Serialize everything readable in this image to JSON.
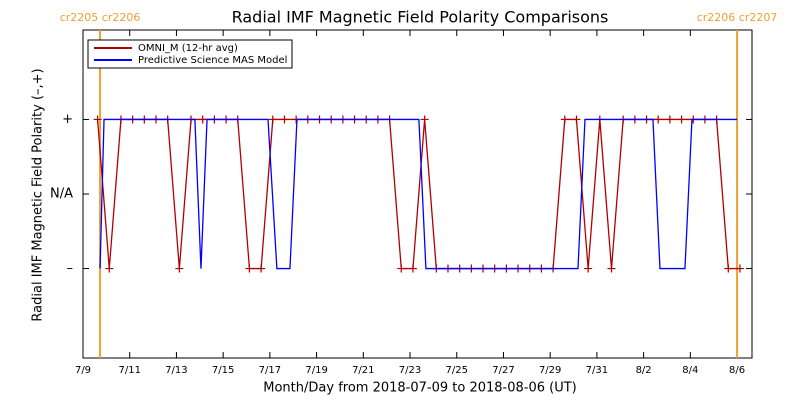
{
  "chart_data": {
    "type": "line",
    "title": "Radial IMF Magnetic Field Polarity Comparisons",
    "x_label": "Month/Day from 2018-07-09 to 2018-08-06 (UT)",
    "y_label": "Radial IMF Magnetic Field Polarity (–,+)",
    "xlim": [
      0,
      28.64
    ],
    "xticks": [
      {
        "value": 0,
        "label": "7/9"
      },
      {
        "value": 2,
        "label": "7/11"
      },
      {
        "value": 4,
        "label": "7/13"
      },
      {
        "value": 6,
        "label": "7/15"
      },
      {
        "value": 8,
        "label": "7/17"
      },
      {
        "value": 10,
        "label": "7/19"
      },
      {
        "value": 12,
        "label": "7/21"
      },
      {
        "value": 14,
        "label": "7/23"
      },
      {
        "value": 16,
        "label": "7/25"
      },
      {
        "value": 18,
        "label": "7/27"
      },
      {
        "value": 20,
        "label": "7/29"
      },
      {
        "value": 22,
        "label": "7/31"
      },
      {
        "value": 24,
        "label": "8/2"
      },
      {
        "value": 26,
        "label": "8/4"
      },
      {
        "value": 28,
        "label": "8/6"
      }
    ],
    "ylim": [
      -2.2,
      2.2
    ],
    "yticks": [
      {
        "value": 1,
        "label": "+"
      },
      {
        "value": 0,
        "label": "N/A"
      },
      {
        "value": -1,
        "label": "–"
      }
    ],
    "legend": "upper-left",
    "rotation_markers": [
      {
        "x": 0.73,
        "label": "cr2205 cr2206"
      },
      {
        "x": 28.0,
        "label": "cr2206 cr2207"
      }
    ],
    "rotation_color": "#f0a030",
    "series": [
      {
        "name": "OMNI_M (12-hr avg)",
        "color": "#b00000",
        "markers": true,
        "x": [
          0.625,
          1.125,
          1.625,
          2.125,
          2.625,
          3.125,
          3.625,
          4.125,
          4.625,
          5.125,
          5.625,
          6.125,
          6.625,
          7.125,
          7.625,
          8.125,
          8.625,
          9.125,
          9.625,
          10.125,
          10.625,
          11.125,
          11.625,
          12.125,
          12.625,
          13.125,
          13.625,
          14.125,
          14.625,
          15.125,
          15.625,
          16.125,
          16.625,
          17.125,
          17.625,
          18.125,
          18.625,
          19.125,
          19.625,
          20.125,
          20.625,
          21.125,
          21.625,
          22.125,
          22.625,
          23.125,
          23.625,
          24.125,
          24.625,
          25.125,
          25.625,
          26.125,
          26.625,
          27.125,
          27.625,
          28.125
        ],
        "values": [
          1,
          -1,
          1,
          1,
          1,
          1,
          1,
          -1,
          1,
          1,
          1,
          1,
          1,
          -1,
          -1,
          1,
          1,
          1,
          1,
          1,
          1,
          1,
          1,
          1,
          1,
          1,
          -1,
          -1,
          1,
          -1,
          -1,
          -1,
          -1,
          -1,
          -1,
          -1,
          -1,
          -1,
          -1,
          -1,
          1,
          1,
          -1,
          1,
          -1,
          1,
          1,
          1,
          1,
          1,
          1,
          1,
          1,
          1,
          -1,
          -1
        ]
      },
      {
        "name": "Predictive Science MAS Model",
        "color": "#0000ff",
        "markers": false,
        "x": [
          0.73,
          0.9,
          4.79,
          5.05,
          5.31,
          7.92,
          8.3,
          8.86,
          9.16,
          14.38,
          14.68,
          21.19,
          21.49,
          24.4,
          24.7,
          25.77,
          26.07,
          28.0
        ],
        "values": [
          -1,
          1,
          1,
          -1,
          1,
          1,
          -1,
          -1,
          1,
          1,
          -1,
          -1,
          1,
          1,
          -1,
          -1,
          1,
          1
        ]
      }
    ]
  }
}
